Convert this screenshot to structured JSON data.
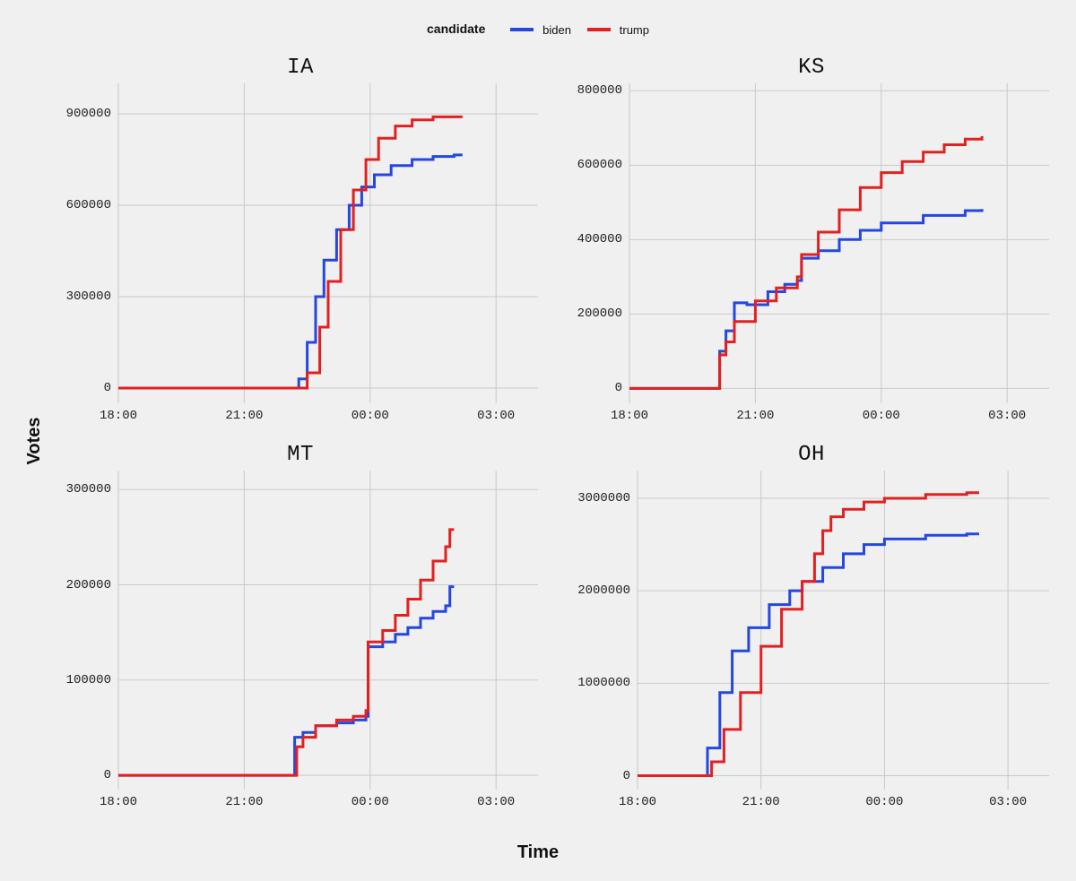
{
  "legend": {
    "title": "candidate",
    "items": [
      {
        "label": "biden",
        "color": "#2447e0"
      },
      {
        "label": "trump",
        "color": "#e22020"
      }
    ]
  },
  "axis_labels": {
    "x": "Time",
    "y": "Votes"
  },
  "style": {
    "background": "#f0f0f0",
    "grid_color": "#c9c9c9",
    "tick_font": "monospace",
    "line_width": 3,
    "title_fontsize": 24,
    "tick_fontsize": 14
  },
  "time_axis": {
    "min_h": 18.0,
    "max_h": 28.0,
    "ticks": [
      {
        "h": 18.0,
        "label": "18:00"
      },
      {
        "h": 21.0,
        "label": "21:00"
      },
      {
        "h": 24.0,
        "label": "00:00"
      },
      {
        "h": 27.0,
        "label": "03:00"
      }
    ]
  },
  "panels": [
    {
      "title": "IA",
      "ylim": [
        -50000,
        1000000
      ],
      "yticks": [
        0,
        300000,
        600000,
        900000
      ],
      "series": {
        "biden": [
          [
            18.0,
            0
          ],
          [
            22.2,
            0
          ],
          [
            22.3,
            30000
          ],
          [
            22.5,
            150000
          ],
          [
            22.7,
            300000
          ],
          [
            22.9,
            420000
          ],
          [
            23.2,
            520000
          ],
          [
            23.5,
            600000
          ],
          [
            23.8,
            660000
          ],
          [
            24.1,
            700000
          ],
          [
            24.5,
            730000
          ],
          [
            25.0,
            750000
          ],
          [
            25.5,
            760000
          ],
          [
            26.0,
            765000
          ],
          [
            26.2,
            765000
          ]
        ],
        "trump": [
          [
            18.0,
            0
          ],
          [
            22.3,
            0
          ],
          [
            22.5,
            50000
          ],
          [
            22.8,
            200000
          ],
          [
            23.0,
            350000
          ],
          [
            23.3,
            520000
          ],
          [
            23.6,
            650000
          ],
          [
            23.9,
            750000
          ],
          [
            24.2,
            820000
          ],
          [
            24.6,
            860000
          ],
          [
            25.0,
            880000
          ],
          [
            25.5,
            890000
          ],
          [
            26.0,
            890000
          ],
          [
            26.2,
            890000
          ]
        ]
      }
    },
    {
      "title": "KS",
      "ylim": [
        -40000,
        820000
      ],
      "yticks": [
        0,
        200000,
        400000,
        600000,
        800000
      ],
      "series": {
        "biden": [
          [
            18.0,
            0
          ],
          [
            20.1,
            0
          ],
          [
            20.15,
            100000
          ],
          [
            20.3,
            155000
          ],
          [
            20.35,
            155000
          ],
          [
            20.5,
            230000
          ],
          [
            20.8,
            225000
          ],
          [
            21.3,
            260000
          ],
          [
            21.7,
            280000
          ],
          [
            22.0,
            290000
          ],
          [
            22.1,
            350000
          ],
          [
            22.5,
            370000
          ],
          [
            23.0,
            400000
          ],
          [
            23.5,
            425000
          ],
          [
            24.0,
            445000
          ],
          [
            25.0,
            465000
          ],
          [
            26.0,
            478000
          ],
          [
            26.4,
            482000
          ]
        ],
        "trump": [
          [
            18.0,
            0
          ],
          [
            20.1,
            0
          ],
          [
            20.15,
            90000
          ],
          [
            20.3,
            125000
          ],
          [
            20.5,
            180000
          ],
          [
            21.0,
            235000
          ],
          [
            21.5,
            270000
          ],
          [
            22.0,
            300000
          ],
          [
            22.1,
            360000
          ],
          [
            22.5,
            420000
          ],
          [
            23.0,
            480000
          ],
          [
            23.5,
            540000
          ],
          [
            24.0,
            580000
          ],
          [
            24.5,
            610000
          ],
          [
            25.0,
            635000
          ],
          [
            25.5,
            655000
          ],
          [
            26.0,
            670000
          ],
          [
            26.4,
            678000
          ]
        ]
      }
    },
    {
      "title": "MT",
      "ylim": [
        -15000,
        320000
      ],
      "yticks": [
        0,
        100000,
        200000,
        300000
      ],
      "series": {
        "biden": [
          [
            18.0,
            0
          ],
          [
            22.1,
            0
          ],
          [
            22.2,
            40000
          ],
          [
            22.4,
            45000
          ],
          [
            22.7,
            52000
          ],
          [
            23.2,
            55000
          ],
          [
            23.6,
            58000
          ],
          [
            23.9,
            62000
          ],
          [
            23.95,
            135000
          ],
          [
            24.3,
            140000
          ],
          [
            24.6,
            148000
          ],
          [
            24.9,
            155000
          ],
          [
            25.2,
            165000
          ],
          [
            25.5,
            172000
          ],
          [
            25.8,
            178000
          ],
          [
            25.9,
            198000
          ],
          [
            26.0,
            198000
          ]
        ],
        "trump": [
          [
            18.0,
            0
          ],
          [
            22.15,
            0
          ],
          [
            22.25,
            30000
          ],
          [
            22.4,
            40000
          ],
          [
            22.7,
            52000
          ],
          [
            23.2,
            58000
          ],
          [
            23.6,
            62000
          ],
          [
            23.9,
            68000
          ],
          [
            23.95,
            140000
          ],
          [
            24.3,
            152000
          ],
          [
            24.6,
            168000
          ],
          [
            24.9,
            185000
          ],
          [
            25.2,
            205000
          ],
          [
            25.5,
            225000
          ],
          [
            25.8,
            240000
          ],
          [
            25.9,
            258000
          ],
          [
            26.0,
            258000
          ]
        ]
      }
    },
    {
      "title": "OH",
      "ylim": [
        -150000,
        3300000
      ],
      "yticks": [
        0,
        1000000,
        2000000,
        3000000
      ],
      "series": {
        "biden": [
          [
            18.0,
            0
          ],
          [
            19.6,
            0
          ],
          [
            19.7,
            300000
          ],
          [
            20.0,
            900000
          ],
          [
            20.3,
            1350000
          ],
          [
            20.7,
            1600000
          ],
          [
            21.2,
            1850000
          ],
          [
            21.7,
            2000000
          ],
          [
            22.0,
            2100000
          ],
          [
            22.5,
            2250000
          ],
          [
            23.0,
            2400000
          ],
          [
            23.5,
            2500000
          ],
          [
            24.0,
            2560000
          ],
          [
            25.0,
            2600000
          ],
          [
            26.0,
            2615000
          ],
          [
            26.3,
            2615000
          ]
        ],
        "trump": [
          [
            18.0,
            0
          ],
          [
            19.7,
            0
          ],
          [
            19.8,
            150000
          ],
          [
            20.1,
            500000
          ],
          [
            20.5,
            900000
          ],
          [
            21.0,
            1400000
          ],
          [
            21.5,
            1800000
          ],
          [
            22.0,
            2100000
          ],
          [
            22.3,
            2400000
          ],
          [
            22.5,
            2650000
          ],
          [
            22.7,
            2800000
          ],
          [
            23.0,
            2880000
          ],
          [
            23.5,
            2960000
          ],
          [
            24.0,
            3000000
          ],
          [
            25.0,
            3040000
          ],
          [
            26.0,
            3060000
          ],
          [
            26.3,
            3060000
          ]
        ]
      }
    }
  ]
}
